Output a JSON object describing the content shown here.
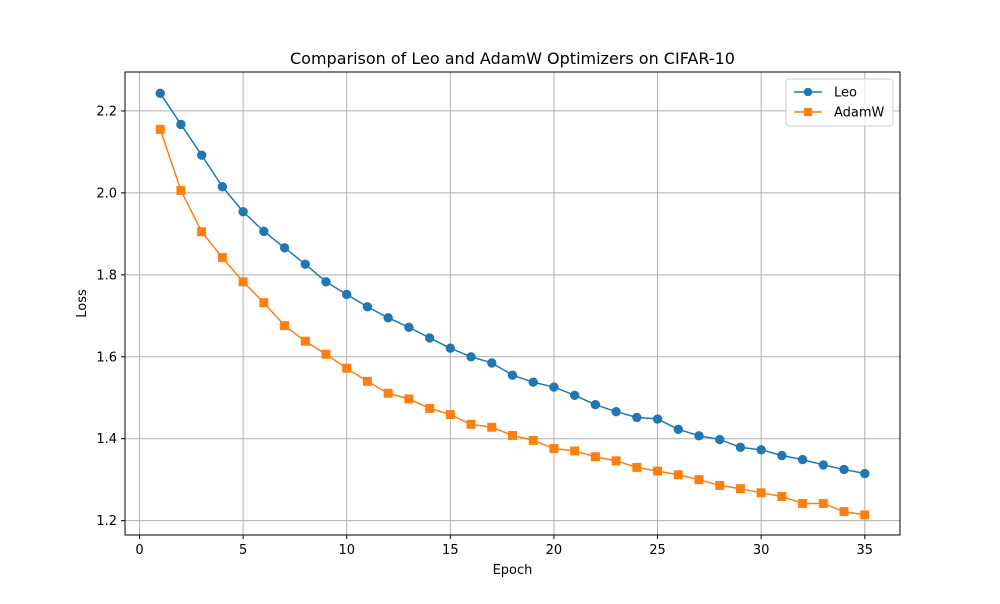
{
  "chart_data": {
    "type": "line",
    "title": "Comparison of Leo and AdamW Optimizers on CIFAR-10",
    "xlabel": "Epoch",
    "ylabel": "Loss",
    "xlim": [
      -0.7,
      36.7
    ],
    "ylim": [
      1.165,
      2.295
    ],
    "xticks": [
      0,
      5,
      10,
      15,
      20,
      25,
      30,
      35
    ],
    "yticks": [
      1.2,
      1.4,
      1.6,
      1.8,
      2.0,
      2.2
    ],
    "ytick_labels": [
      "1.2",
      "1.4",
      "1.6",
      "1.8",
      "2.0",
      "2.2"
    ],
    "grid": true,
    "legend_position": "top-right",
    "x": [
      1,
      2,
      3,
      4,
      5,
      6,
      7,
      8,
      9,
      10,
      11,
      12,
      13,
      14,
      15,
      16,
      17,
      18,
      19,
      20,
      21,
      22,
      23,
      24,
      25,
      26,
      27,
      28,
      29,
      30,
      31,
      32,
      33,
      34,
      35
    ],
    "series": [
      {
        "name": "Leo",
        "color": "#1f77b4",
        "marker": "circle",
        "values": [
          2.243,
          2.167,
          2.092,
          2.015,
          1.954,
          1.906,
          1.866,
          1.826,
          1.783,
          1.752,
          1.722,
          1.695,
          1.672,
          1.646,
          1.621,
          1.6,
          1.585,
          1.555,
          1.538,
          1.526,
          1.506,
          1.483,
          1.466,
          1.452,
          1.448,
          1.423,
          1.407,
          1.398,
          1.379,
          1.373,
          1.359,
          1.349,
          1.336,
          1.325,
          1.315
        ]
      },
      {
        "name": "AdamW",
        "color": "#ff7f0e",
        "marker": "square",
        "values": [
          2.155,
          2.006,
          1.905,
          1.842,
          1.783,
          1.732,
          1.676,
          1.638,
          1.606,
          1.572,
          1.54,
          1.511,
          1.497,
          1.474,
          1.459,
          1.435,
          1.428,
          1.408,
          1.396,
          1.376,
          1.37,
          1.356,
          1.346,
          1.33,
          1.321,
          1.312,
          1.3,
          1.286,
          1.278,
          1.268,
          1.259,
          1.242,
          1.242,
          1.222,
          1.214
        ]
      }
    ]
  }
}
